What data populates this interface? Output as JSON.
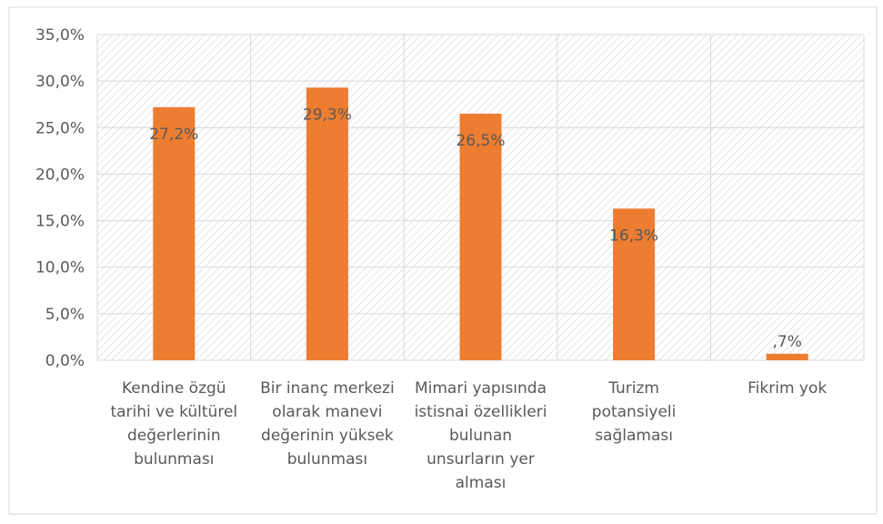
{
  "chart_data": {
    "type": "bar",
    "categories": [
      "Kendine özgü\ntarihi ve kültürel\ndeğerlerinin\nbulunması",
      "Bir inanç merkezi\nolarak manevi\ndeğerinin yüksek\nbulunması",
      "Mimari yapısında\nistisnai özellikleri\nbulunan\nunsurların yer\nalması",
      "Turizm\npotansiyeli\nsağlaması",
      "Fikrim yok"
    ],
    "values": [
      27.2,
      29.3,
      26.5,
      16.3,
      0.7
    ],
    "value_labels": [
      "27,2%",
      "29,3%",
      "26,5%",
      "16,3%",
      ",7%"
    ],
    "color": "#ed7d31",
    "ylim": [
      0,
      35
    ],
    "yticks": [
      {
        "value": 0,
        "label": "0,0%"
      },
      {
        "value": 5,
        "label": "5,0%"
      },
      {
        "value": 10,
        "label": "10,0%"
      },
      {
        "value": 15,
        "label": "15,0%"
      },
      {
        "value": 20,
        "label": "20,0%"
      },
      {
        "value": 25,
        "label": "25,0%"
      },
      {
        "value": 30,
        "label": "30,0%"
      },
      {
        "value": 35,
        "label": "35,0%"
      }
    ],
    "grid": true
  }
}
